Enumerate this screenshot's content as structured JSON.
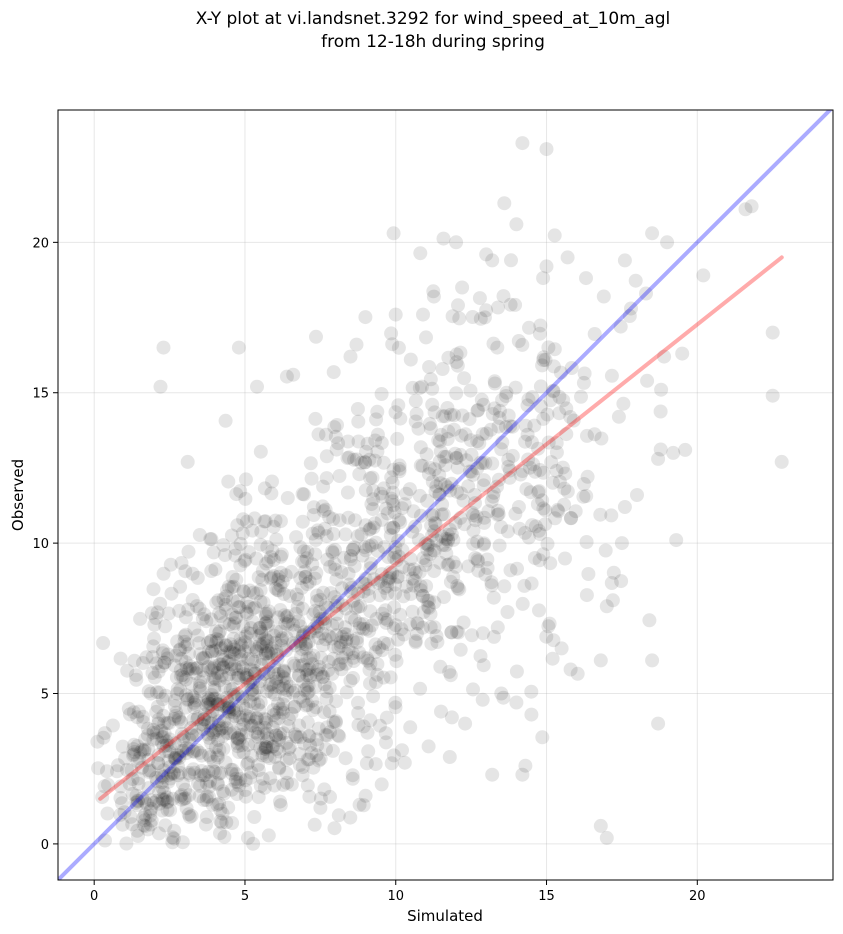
{
  "figure": {
    "title": "X-Y plot at vi.landsnet.3292 for wind_speed_at_10m_agl\nfrom 12-18h during spring"
  },
  "chart_data": {
    "type": "scatter",
    "title": "X-Y plot at vi.landsnet.3292 for wind_speed_at_10m_agl\nfrom 12-18h during spring",
    "xlabel": "Simulated",
    "ylabel": "Observed",
    "xlim": [
      -1.2,
      24.5
    ],
    "ylim": [
      -1.2,
      24.4
    ],
    "xticks": [
      0,
      5,
      10,
      15,
      20
    ],
    "yticks": [
      0,
      5,
      10,
      15,
      20
    ],
    "grid": true,
    "point_color": "#000000",
    "point_opacity": 0.1,
    "regression_line": {
      "color": "#ff0000",
      "x": [
        0.2,
        22.8
      ],
      "y": [
        1.5,
        19.5
      ]
    },
    "identity_line": {
      "color": "#0000ff",
      "x": [
        -1.2,
        24.5
      ],
      "y": [
        -1.2,
        24.5
      ]
    },
    "outlier_points": [
      [
        14.2,
        23.3
      ],
      [
        15.0,
        23.1
      ],
      [
        21.8,
        21.2
      ],
      [
        21.6,
        21.1
      ],
      [
        13.6,
        21.3
      ],
      [
        14.0,
        20.6
      ],
      [
        12.0,
        20.0
      ],
      [
        18.5,
        20.3
      ],
      [
        19.0,
        20.0
      ],
      [
        20.2,
        18.9
      ],
      [
        22.5,
        17.0
      ],
      [
        22.5,
        14.9
      ],
      [
        22.8,
        12.7
      ],
      [
        19.6,
        13.1
      ],
      [
        19.2,
        13.0
      ],
      [
        18.7,
        12.8
      ],
      [
        19.3,
        10.1
      ],
      [
        18.7,
        4.0
      ],
      [
        18.5,
        6.1
      ],
      [
        17.5,
        10.0
      ],
      [
        17.0,
        7.9
      ],
      [
        17.2,
        8.1
      ],
      [
        16.8,
        0.6
      ],
      [
        17.0,
        0.2
      ],
      [
        16.8,
        6.1
      ],
      [
        15.8,
        5.8
      ],
      [
        15.5,
        6.5
      ],
      [
        14.3,
        2.6
      ],
      [
        14.2,
        2.3
      ],
      [
        13.2,
        2.3
      ],
      [
        12.3,
        4.0
      ],
      [
        11.5,
        4.4
      ],
      [
        10.3,
        2.7
      ],
      [
        2.3,
        16.5
      ],
      [
        2.2,
        15.2
      ],
      [
        3.1,
        12.7
      ],
      [
        4.8,
        16.5
      ],
      [
        5.4,
        15.2
      ],
      [
        8.7,
        16.6
      ],
      [
        8.5,
        16.2
      ],
      [
        6.6,
        15.6
      ],
      [
        14.0,
        4.7
      ],
      [
        13.5,
        5.0
      ],
      [
        14.5,
        4.3
      ],
      [
        8.8,
        1.3
      ],
      [
        9.0,
        1.6
      ],
      [
        7.5,
        1.2
      ],
      [
        5.1,
        0.2
      ],
      [
        17.8,
        17.8
      ],
      [
        16.9,
        18.2
      ],
      [
        17.6,
        19.4
      ],
      [
        18.3,
        18.3
      ],
      [
        13.0,
        19.6
      ],
      [
        13.2,
        19.4
      ],
      [
        15.0,
        19.2
      ],
      [
        15.7,
        19.5
      ],
      [
        12.2,
        18.5
      ],
      [
        10.5,
        16.1
      ],
      [
        18.9,
        16.2
      ],
      [
        19.5,
        16.3
      ],
      [
        17.4,
        14.2
      ],
      [
        18.0,
        11.6
      ],
      [
        17.6,
        11.2
      ],
      [
        18.8,
        15.1
      ]
    ],
    "clusters": [
      {
        "center": [
          4.3,
          4.3
        ],
        "spread": [
          1.6,
          2.0
        ],
        "count": 520
      },
      {
        "center": [
          6.8,
          7.0
        ],
        "spread": [
          2.0,
          2.4
        ],
        "count": 420
      },
      {
        "center": [
          9.8,
          9.8
        ],
        "spread": [
          2.0,
          2.6
        ],
        "count": 330
      },
      {
        "center": [
          12.6,
          12.3
        ],
        "spread": [
          1.8,
          2.8
        ],
        "count": 200
      },
      {
        "center": [
          15.4,
          13.5
        ],
        "spread": [
          1.6,
          3.0
        ],
        "count": 90
      },
      {
        "center": [
          2.0,
          2.2
        ],
        "spread": [
          1.0,
          1.4
        ],
        "count": 160
      }
    ]
  }
}
